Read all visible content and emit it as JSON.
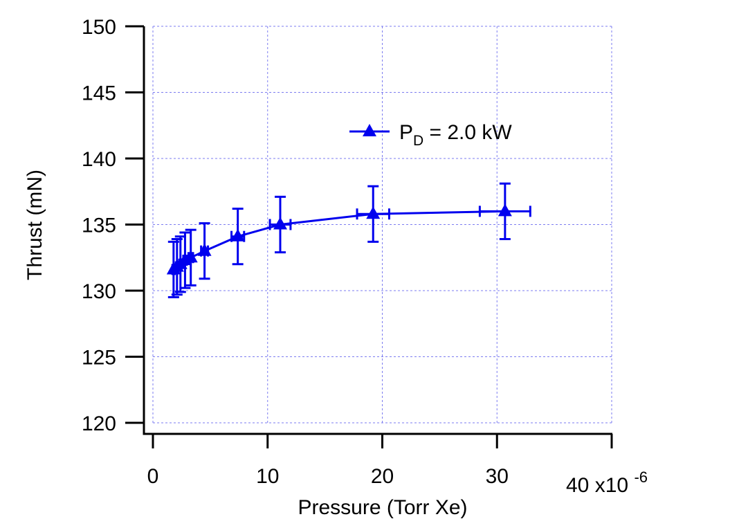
{
  "chart_data": {
    "type": "scatter",
    "xlabel": "Pressure (Torr Xe)",
    "ylabel": "Thrust (mN)",
    "x_multiplier": "x10",
    "x_multiplier_exp": "-6",
    "xlim": [
      -1,
      40
    ],
    "ylim": [
      119,
      150
    ],
    "xticks": [
      0,
      10,
      20,
      30,
      40
    ],
    "yticks": [
      120,
      125,
      130,
      135,
      140,
      145,
      150
    ],
    "grid": true,
    "legend_position": "upper-center",
    "series": [
      {
        "name": "P",
        "name_sub": "D",
        "name_rest": " = 2.0 kW",
        "color": "#0000ee",
        "marker": "triangle",
        "points": [
          {
            "x": 1.8,
            "y": 131.6,
            "xerr": 0.1,
            "yerr": 2.1
          },
          {
            "x": 2.1,
            "y": 131.8,
            "xerr": 0.1,
            "yerr": 2.1
          },
          {
            "x": 2.4,
            "y": 132.0,
            "xerr": 0.1,
            "yerr": 2.1
          },
          {
            "x": 2.8,
            "y": 132.3,
            "xerr": 0.15,
            "yerr": 2.1
          },
          {
            "x": 3.3,
            "y": 132.5,
            "xerr": 0.2,
            "yerr": 2.1
          },
          {
            "x": 4.5,
            "y": 133.0,
            "xerr": 0.3,
            "yerr": 2.1
          },
          {
            "x": 7.4,
            "y": 134.1,
            "xerr": 0.55,
            "yerr": 2.1
          },
          {
            "x": 11.1,
            "y": 135.0,
            "xerr": 0.9,
            "yerr": 2.1
          },
          {
            "x": 19.2,
            "y": 135.8,
            "xerr": 1.4,
            "yerr": 2.1
          },
          {
            "x": 30.7,
            "y": 136.0,
            "xerr": 2.2,
            "yerr": 2.1
          }
        ]
      }
    ]
  }
}
